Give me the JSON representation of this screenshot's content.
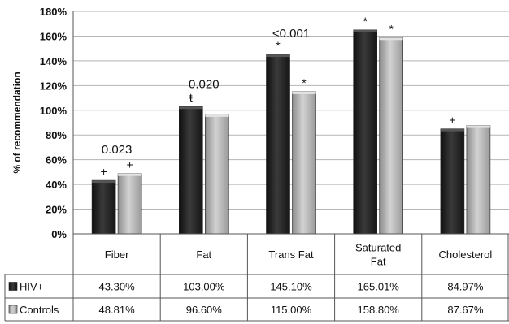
{
  "chart_data": {
    "type": "bar",
    "ylabel": "% of recommendation",
    "yticks": [
      "0%",
      "20%",
      "40%",
      "60%",
      "80%",
      "100%",
      "120%",
      "140%",
      "160%",
      "180%"
    ],
    "ylim": [
      0,
      180
    ],
    "grid": true,
    "categories": [
      {
        "lines": [
          "Fiber"
        ]
      },
      {
        "lines": [
          "Fat"
        ]
      },
      {
        "lines": [
          "Trans Fat"
        ]
      },
      {
        "lines": [
          "Saturated",
          "Fat"
        ]
      },
      {
        "lines": [
          "Cholesterol"
        ]
      }
    ],
    "series": [
      {
        "name": "HIV+",
        "color": "#2a2a2a",
        "values": [
          43.3,
          103.0,
          145.1,
          165.01,
          84.97
        ],
        "labels": [
          "43.30%",
          "103.00%",
          "145.10%",
          "165.01%",
          "84.97%"
        ],
        "marks": [
          "+",
          "ŧ",
          "*",
          "*",
          "+"
        ]
      },
      {
        "name": "Controls",
        "color": "#a9a9a9",
        "values": [
          48.81,
          96.6,
          115.0,
          158.8,
          87.67
        ],
        "labels": [
          "48.81%",
          "96.60%",
          "115.00%",
          "158.80%",
          "87.67%"
        ],
        "marks": [
          "+",
          "",
          "*",
          "*",
          ""
        ]
      }
    ],
    "annotations": [
      {
        "category": 0,
        "text": "0.023",
        "y": 65
      },
      {
        "category": 1,
        "text": "0.020",
        "y": 118
      },
      {
        "category": 2,
        "text": "<0.001",
        "y": 159
      }
    ],
    "legend": "data-table"
  }
}
